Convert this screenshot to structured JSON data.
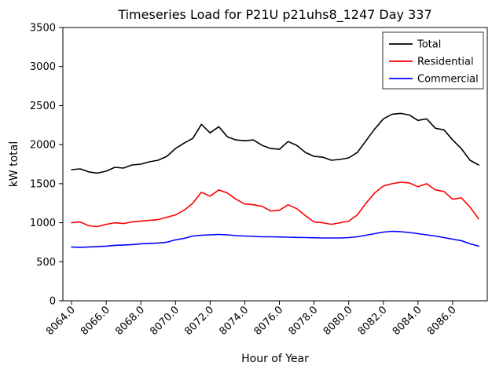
{
  "chart_data": {
    "type": "line",
    "title": "Timeseries Load for P21U p21uhs8_1247  Day 337",
    "xlabel": "Hour of Year",
    "ylabel": "kW total",
    "xlim": [
      8063.5,
      8088.0
    ],
    "ylim": [
      0,
      3500
    ],
    "grid": false,
    "legend_position": "upper right",
    "xtick_values": [
      8064,
      8066,
      8068,
      8070,
      8072,
      8074,
      8076,
      8078,
      8080,
      8082,
      8084,
      8086
    ],
    "xtick_labels": [
      "8064.0",
      "8066.0",
      "8068.0",
      "8070.0",
      "8072.0",
      "8074.0",
      "8076.0",
      "8078.0",
      "8080.0",
      "8082.0",
      "8084.0",
      "8086.0"
    ],
    "ytick_values": [
      0,
      500,
      1000,
      1500,
      2000,
      2500,
      3000,
      3500
    ],
    "ytick_labels": [
      "0",
      "500",
      "1000",
      "1500",
      "2000",
      "2500",
      "3000",
      "3500"
    ],
    "x": [
      8064.0,
      8064.5,
      8065.0,
      8065.5,
      8066.0,
      8066.5,
      8067.0,
      8067.5,
      8068.0,
      8068.5,
      8069.0,
      8069.5,
      8070.0,
      8070.5,
      8071.0,
      8071.5,
      8072.0,
      8072.5,
      8073.0,
      8073.5,
      8074.0,
      8074.5,
      8075.0,
      8075.5,
      8076.0,
      8076.5,
      8077.0,
      8077.5,
      8078.0,
      8078.5,
      8079.0,
      8079.5,
      8080.0,
      8080.5,
      8081.0,
      8081.5,
      8082.0,
      8082.5,
      8083.0,
      8083.5,
      8084.0,
      8084.5,
      8085.0,
      8085.5,
      8086.0,
      8086.5,
      8087.0,
      8087.5
    ],
    "series": [
      {
        "name": "Total",
        "color": "#000000",
        "values": [
          1680,
          1690,
          1650,
          1635,
          1660,
          1710,
          1700,
          1740,
          1750,
          1780,
          1800,
          1850,
          1950,
          2020,
          2080,
          2260,
          2150,
          2230,
          2100,
          2060,
          2050,
          2060,
          1990,
          1950,
          1940,
          2040,
          1990,
          1900,
          1850,
          1840,
          1800,
          1810,
          1830,
          1900,
          2050,
          2200,
          2330,
          2390,
          2400,
          2380,
          2310,
          2330,
          2210,
          2190,
          2060,
          1950,
          1800,
          1740
        ]
      },
      {
        "name": "Residential",
        "color": "#ff0000",
        "values": [
          1000,
          1010,
          960,
          950,
          980,
          1000,
          990,
          1010,
          1020,
          1030,
          1040,
          1070,
          1100,
          1160,
          1250,
          1390,
          1340,
          1420,
          1380,
          1300,
          1240,
          1230,
          1210,
          1150,
          1160,
          1230,
          1180,
          1090,
          1010,
          1000,
          980,
          1000,
          1020,
          1100,
          1250,
          1380,
          1470,
          1500,
          1520,
          1510,
          1460,
          1500,
          1420,
          1400,
          1300,
          1320,
          1200,
          1050
        ]
      },
      {
        "name": "Commercial",
        "color": "#0000ff",
        "values": [
          690,
          685,
          690,
          695,
          700,
          710,
          715,
          720,
          730,
          735,
          740,
          750,
          780,
          800,
          830,
          840,
          845,
          850,
          845,
          835,
          830,
          825,
          820,
          820,
          818,
          815,
          812,
          810,
          808,
          805,
          805,
          805,
          810,
          820,
          840,
          860,
          880,
          890,
          885,
          875,
          860,
          845,
          830,
          810,
          790,
          770,
          730,
          700
        ]
      }
    ]
  }
}
